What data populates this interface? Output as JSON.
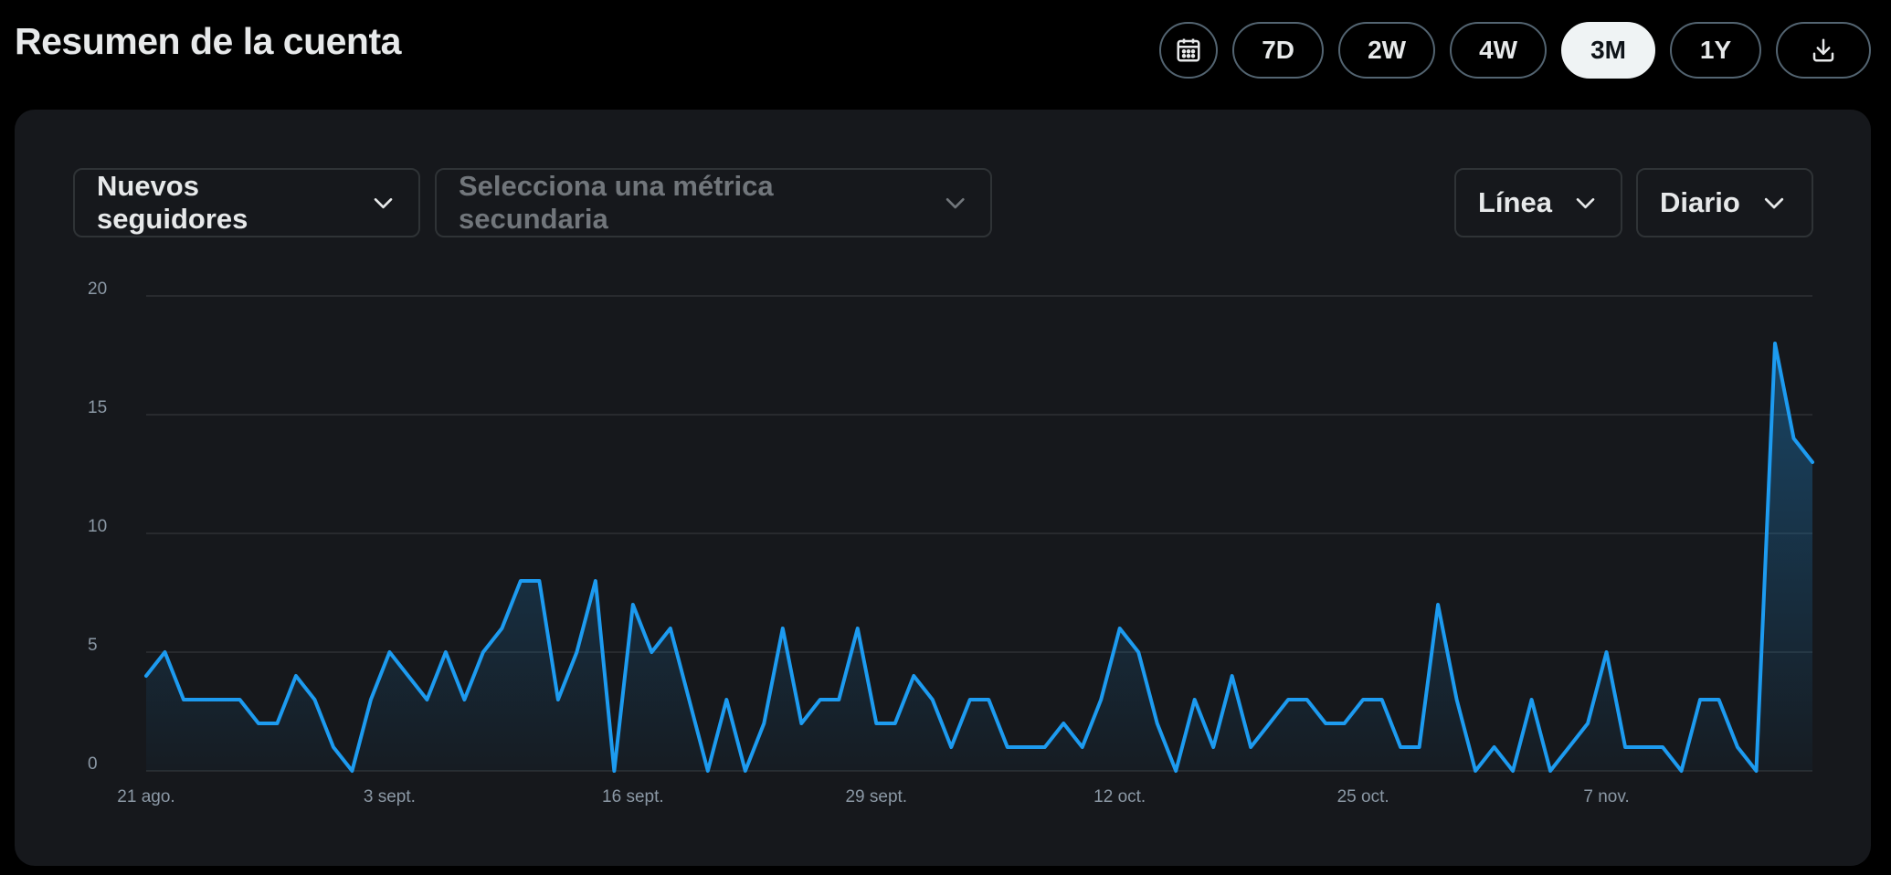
{
  "header": {
    "title": "Resumen de la cuenta",
    "ranges": [
      "7D",
      "2W",
      "4W",
      "3M",
      "1Y"
    ],
    "active_range": "3M",
    "calendar_icon": "calendar-icon",
    "download_icon": "download-icon"
  },
  "controls": {
    "primary_metric": "Nuevos seguidores",
    "secondary_metric_placeholder": "Selecciona una métrica secundaria",
    "chart_type": "Línea",
    "granularity": "Diario"
  },
  "colors": {
    "line": "#1d9bf0",
    "active_pill_bg": "#eff3f4"
  },
  "chart_data": {
    "type": "area",
    "title": "",
    "xlabel": "",
    "ylabel": "",
    "ylim": [
      0,
      20
    ],
    "yticks": [
      0,
      5,
      10,
      15,
      20
    ],
    "grid": true,
    "xtick_labels": [
      {
        "index": 0,
        "label": "21 ago."
      },
      {
        "index": 13,
        "label": "3 sept."
      },
      {
        "index": 26,
        "label": "16 sept."
      },
      {
        "index": 39,
        "label": "29 sept."
      },
      {
        "index": 52,
        "label": "12 oct."
      },
      {
        "index": 65,
        "label": "25 oct."
      },
      {
        "index": 78,
        "label": "7 nov."
      }
    ],
    "series": [
      {
        "values": [
          4,
          5,
          3,
          3,
          3,
          3,
          2,
          2,
          4,
          3,
          1,
          0,
          3,
          5,
          4,
          3,
          5,
          3,
          5,
          6,
          8,
          8,
          3,
          5,
          8,
          0,
          7,
          5,
          6,
          3,
          0,
          3,
          0,
          2,
          6,
          2,
          3,
          3,
          6,
          2,
          2,
          4,
          3,
          1,
          3,
          3,
          1,
          1,
          1,
          2,
          1,
          3,
          6,
          5,
          2,
          0,
          3,
          1,
          4,
          1,
          2,
          3,
          3,
          2,
          2,
          3,
          3,
          1,
          1,
          7,
          3,
          0,
          1,
          0,
          3,
          0,
          1,
          2,
          5,
          1,
          1,
          1,
          0,
          3,
          3,
          1,
          0,
          18,
          14,
          13
        ]
      }
    ]
  }
}
